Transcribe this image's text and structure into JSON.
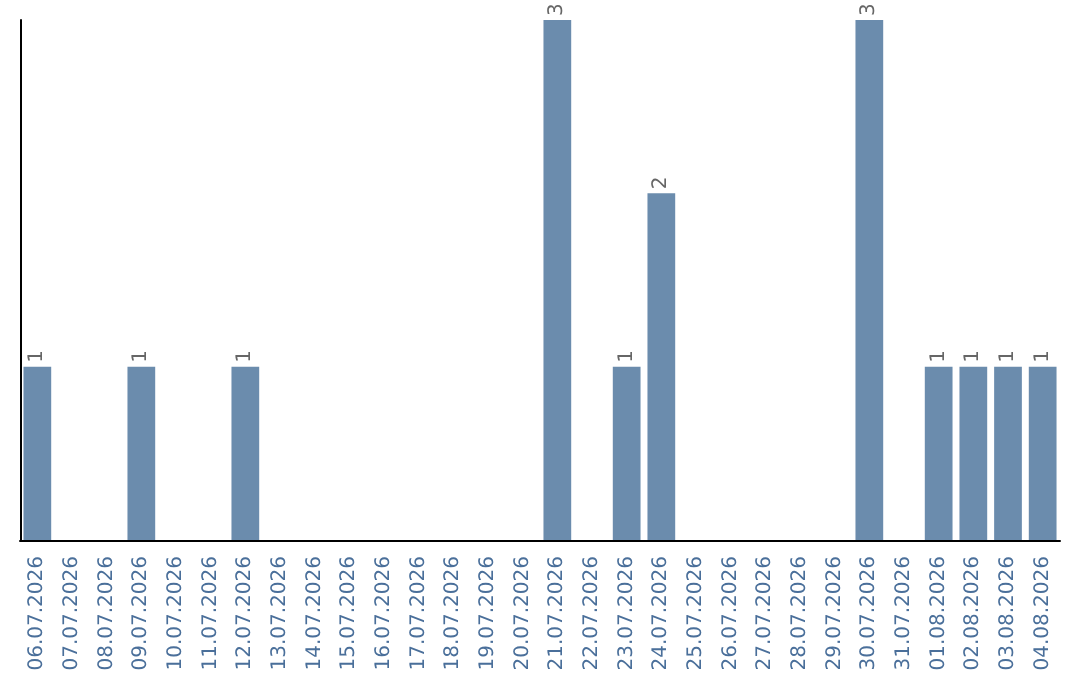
{
  "chart_data": {
    "type": "bar",
    "categories": [
      "06.07.2026",
      "07.07.2026",
      "08.07.2026",
      "09.07.2026",
      "10.07.2026",
      "11.07.2026",
      "12.07.2026",
      "13.07.2026",
      "14.07.2026",
      "15.07.2026",
      "16.07.2026",
      "17.07.2026",
      "18.07.2026",
      "19.07.2026",
      "20.07.2026",
      "21.07.2026",
      "22.07.2026",
      "23.07.2026",
      "24.07.2026",
      "25.07.2026",
      "26.07.2026",
      "27.07.2026",
      "28.07.2026",
      "29.07.2026",
      "30.07.2026",
      "31.07.2026",
      "01.08.2026",
      "02.08.2026",
      "03.08.2026",
      "04.08.2026"
    ],
    "values": [
      1,
      null,
      null,
      1,
      null,
      null,
      1,
      null,
      null,
      null,
      null,
      null,
      null,
      null,
      null,
      3,
      null,
      1,
      2,
      null,
      null,
      null,
      null,
      null,
      3,
      null,
      1,
      1,
      1,
      1
    ],
    "color": "#6b8cad",
    "data_labels": true
  }
}
